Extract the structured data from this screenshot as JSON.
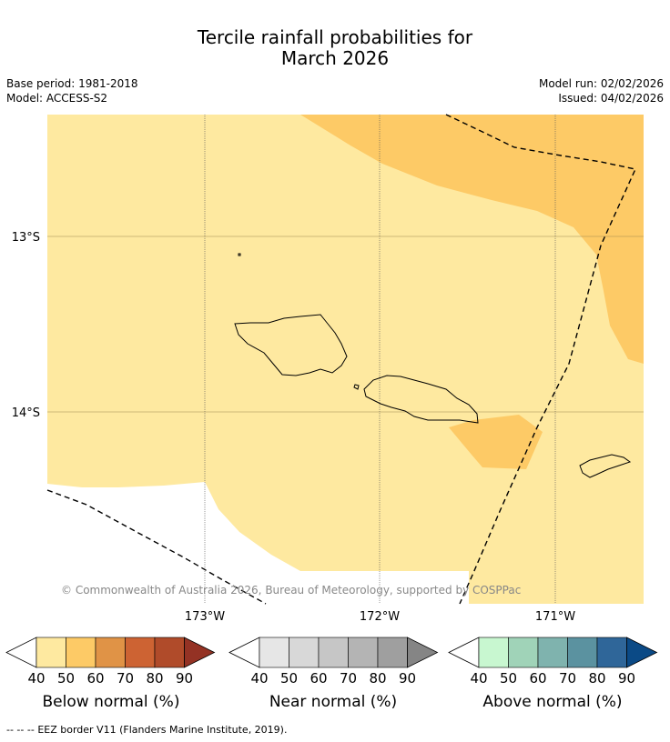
{
  "header": {
    "title_line1": "Tercile rainfall probabilities for",
    "title_line2": "March 2026",
    "base_period": "Base period: 1981-2018",
    "model": "Model: ACCESS-S2",
    "model_run": "Model run: 02/02/2026",
    "issued": "Issued: 04/02/2026"
  },
  "chart_data": {
    "type": "map",
    "title": "Tercile rainfall probabilities for March 2026",
    "region": "Samoa",
    "lon_ticks": [
      "173°W",
      "172°W",
      "171°W"
    ],
    "lat_ticks": [
      "13°S",
      "14°S"
    ],
    "lon_range": [
      -173.9,
      -170.5
    ],
    "lat_range": [
      -15.1,
      -12.35
    ],
    "shading": [
      {
        "category": "Below normal",
        "probability_bin": "40-50",
        "area": "most of map"
      },
      {
        "category": "Below normal",
        "probability_bin": "50-60",
        "area": "north-east and a patch south-east of Upolu"
      }
    ],
    "copyright": "© Commonwealth of Australia 2026, Bureau of Meteorology, supported by COSPPac"
  },
  "colorbars": [
    {
      "label": "Below normal (%)",
      "ticks": [
        "40",
        "50",
        "60",
        "70",
        "80",
        "90"
      ],
      "colors": [
        "#fee9a0",
        "#fdca66",
        "#e09346",
        "#cd6333",
        "#b04b2a",
        "#943224"
      ]
    },
    {
      "label": "Near normal (%)",
      "ticks": [
        "40",
        "50",
        "60",
        "70",
        "80",
        "90"
      ],
      "colors": [
        "#e6e6e6",
        "#d8d8d8",
        "#c6c6c6",
        "#b4b4b4",
        "#9f9f9f",
        "#858585"
      ]
    },
    {
      "label": "Above normal (%)",
      "ticks": [
        "40",
        "50",
        "60",
        "70",
        "80",
        "90"
      ],
      "colors": [
        "#c8f7d0",
        "#a0d3b8",
        "#7fb3ae",
        "#5b92a0",
        "#2f6699",
        "#0b4a86"
      ]
    }
  ],
  "footer": {
    "legend_symbol": "-- -- --",
    "text": "EEZ border V11 (Flanders Marine Institute, 2019)."
  }
}
